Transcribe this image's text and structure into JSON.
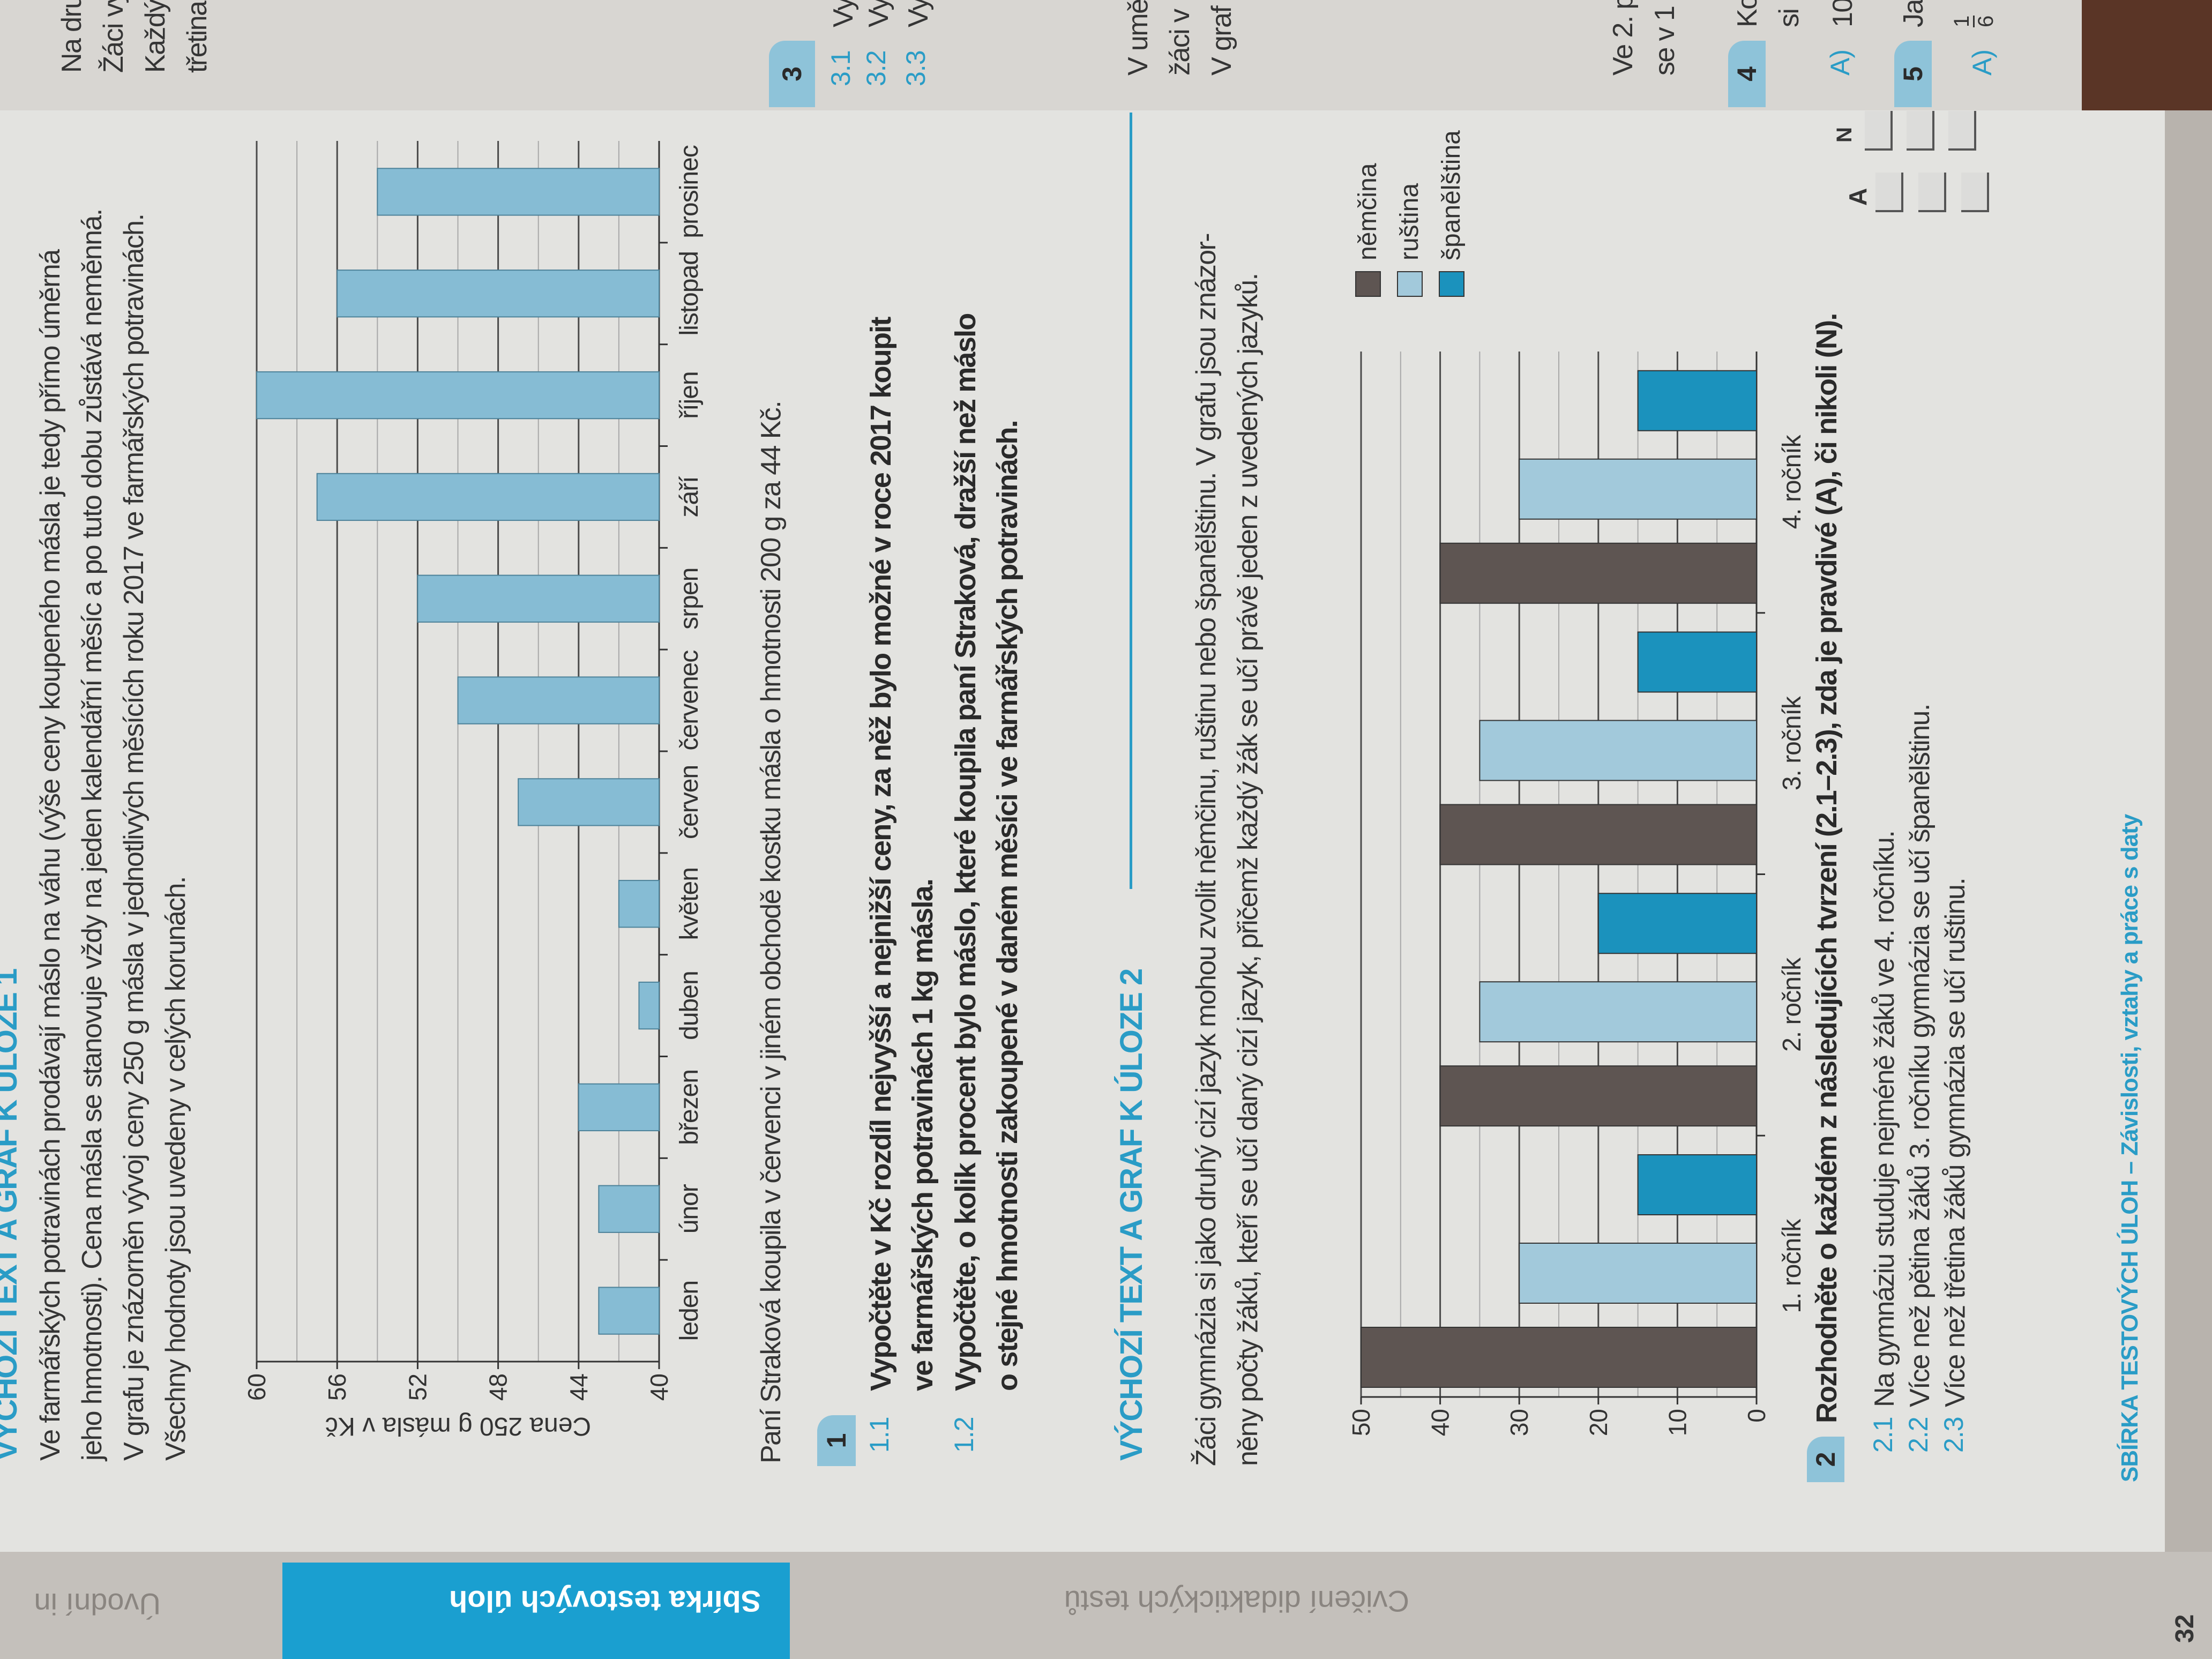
{
  "margin_tabs": {
    "intro": "Úvodní in",
    "collection": "Sbírka testových úloh",
    "practice": "Cvičení didaktických testů"
  },
  "section1": {
    "heading": "VÝCHOZÍ TEXT A GRAF K ÚLOZE 1",
    "lines": [
      "Ve farmářských potravinách prodávají máslo na váhu (výše ceny koupeného másla je tedy přímo úměrná",
      "jeho hmotnosti). Cena másla se stanovuje vždy na jeden kalendářní měsíc a po tuto dobu zůstává neměnná.",
      "V grafu je znázorněn vývoj ceny 250 g másla v jednotlivých měsících roku 2017 ve farmářských potravinách.",
      "Všechny hodnoty jsou uvedeny v celých korunách."
    ],
    "after_chart": "Paní Straková koupila v červenci v jiném obchodě kostku másla o hmotnosti 200 g za 44 Kč."
  },
  "task1": {
    "number": "1",
    "items": [
      {
        "label": "1.1",
        "lines": [
          "Vypočtěte v Kč rozdíl nejvyšší a nejnižší ceny, za něž bylo možné v roce 2017 koupit",
          "ve farmářských potravinách 1 kg másla."
        ]
      },
      {
        "label": "1.2",
        "lines": [
          "Vypočtěte, o kolik procent bylo máslo, které koupila paní Straková, dražší než máslo",
          "o stejné hmotnosti zakoupené v daném měsíci ve farmářských potravinách."
        ]
      }
    ]
  },
  "section2": {
    "heading": "VÝCHOZÍ TEXT A GRAF K ÚLOZE 2",
    "lines": [
      "Žáci gymnázia si jako druhý cizí jazyk mohou zvolit němčinu, ruštinu nebo španělštinu. V grafu jsou znázor-",
      "něny počty žáků, kteří se učí daný cizí jazyk, přičemž každý žák se učí právě jeden z uvedených jazyků."
    ]
  },
  "task2": {
    "number": "2",
    "question": "Rozhodněte o každém z následujících tvrzení (2.1–2.3), zda je pravdivé (A), či nikoli (N).",
    "col_true": "A",
    "col_false": "N",
    "items": [
      {
        "label": "2.1",
        "text": "Na gymnáziu studuje nejméně žáků ve 4. ročníku."
      },
      {
        "label": "2.2",
        "text": "Více než pětina žáků 3. ročníku gymnázia se učí španělštinu."
      },
      {
        "label": "2.3",
        "text": "Více než třetina žáků gymnázia se učí ruštinu."
      }
    ]
  },
  "footer": {
    "title": "SBÍRKA TESTOVÝCH ÚLOH – Závislosti, vztahy a práce s daty",
    "page": "32"
  },
  "next_page": {
    "frag_a": [
      "Na dru",
      "Žáci vy",
      "Každý",
      "třetina"
    ],
    "box3": "3",
    "sub3": [
      {
        "label": "3.1",
        "text": "Vy"
      },
      {
        "label": "3.2",
        "text": "Vy"
      },
      {
        "label": "3.3",
        "text": "Vy"
      }
    ],
    "frag_b": [
      "V umě",
      "žáci v",
      "V graf"
    ],
    "frag_c": [
      "Ve 2. p",
      "se v 1"
    ],
    "box4": "4",
    "box4_text": "Ko",
    "box4_text2": "si",
    "opt4": "A)",
    "opt4_text": "10",
    "box5": "5",
    "box5_text": "Ja",
    "opt5": "A)",
    "opt5_num": "1",
    "opt5_den": "6"
  },
  "chart_data": [
    {
      "type": "bar",
      "title": "",
      "ylabel": "Cena 250 g másla v Kč",
      "xlabel": "",
      "categories": [
        "leden",
        "únor",
        "březen",
        "duben",
        "květen",
        "červen",
        "červenec",
        "srpen",
        "září",
        "říjen",
        "listopad",
        "prosinec"
      ],
      "values": [
        43,
        43,
        44,
        41,
        42,
        47,
        50,
        52,
        57,
        60,
        56,
        54
      ],
      "ylim": [
        40,
        60
      ],
      "yticks": [
        40,
        44,
        48,
        52,
        56,
        60
      ],
      "grid": true,
      "color": "#86bcd4"
    },
    {
      "type": "bar",
      "title": "",
      "ylabel": "",
      "xlabel": "",
      "categories": [
        "1. ročník",
        "2. ročník",
        "3. ročník",
        "4. ročník"
      ],
      "series": [
        {
          "name": "němčina",
          "values": [
            50,
            40,
            40,
            40
          ],
          "color": "#5e5552"
        },
        {
          "name": "ruština",
          "values": [
            30,
            35,
            35,
            30
          ],
          "color": "#a2c9db"
        },
        {
          "name": "španělština",
          "values": [
            15,
            20,
            15,
            15
          ],
          "color": "#1b92bd"
        }
      ],
      "ylim": [
        0,
        50
      ],
      "yticks": [
        0,
        10,
        20,
        30,
        40,
        50
      ],
      "grid": true,
      "legend": "right"
    }
  ]
}
